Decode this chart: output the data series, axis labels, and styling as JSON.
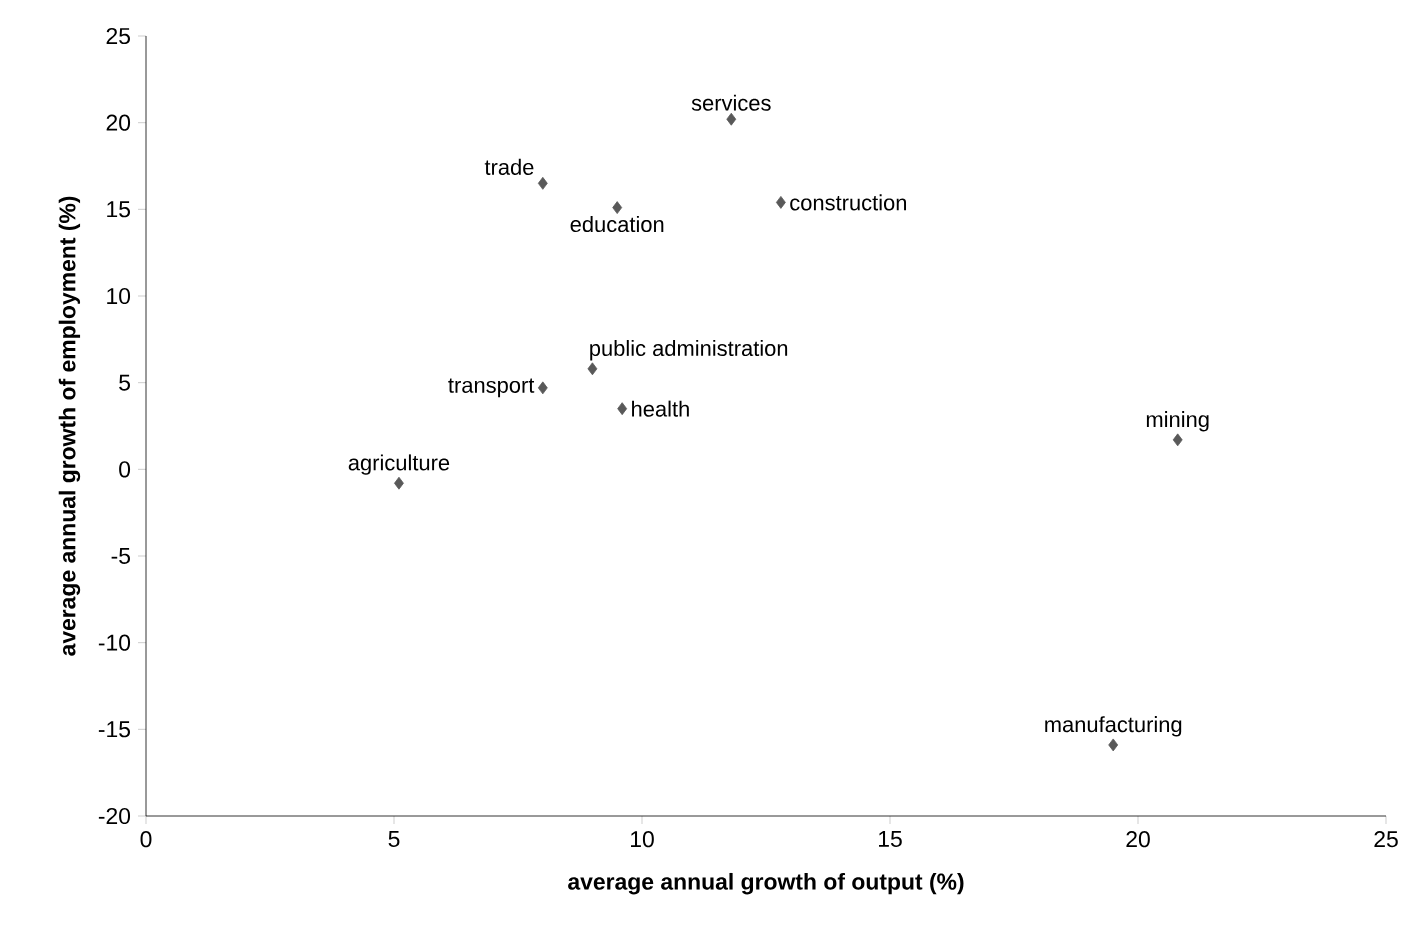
{
  "chart_data": {
    "type": "scatter",
    "xlabel": "average annual growth of output (%)",
    "ylabel": "average annual growth of employment (%)",
    "x": [
      11.8,
      8.0,
      9.5,
      12.8,
      9.0,
      8.0,
      9.6,
      5.1,
      20.8,
      19.5
    ],
    "values": [
      20.2,
      16.5,
      15.1,
      15.4,
      5.8,
      4.7,
      3.5,
      -0.8,
      1.7,
      -15.9
    ],
    "color": "#595959",
    "marker": "diamond",
    "annotations": [
      {
        "text": "services",
        "x": 11.8,
        "y": 20.2
      },
      {
        "text": "trade",
        "x": 8.0,
        "y": 16.5
      },
      {
        "text": "education",
        "x": 9.5,
        "y": 15.1
      },
      {
        "text": "construction",
        "x": 12.8,
        "y": 15.4
      },
      {
        "text": "public administration",
        "x": 9.0,
        "y": 5.8
      },
      {
        "text": "transport",
        "x": 8.0,
        "y": 4.7
      },
      {
        "text": "health",
        "x": 9.6,
        "y": 3.5
      },
      {
        "text": "agriculture",
        "x": 5.1,
        "y": -0.8
      },
      {
        "text": "mining",
        "x": 20.8,
        "y": 1.7
      },
      {
        "text": "manufacturing",
        "x": 19.5,
        "y": -15.9
      }
    ],
    "xlim": [
      0,
      25
    ],
    "ylim": [
      -20,
      25
    ],
    "xticks": [
      0,
      5,
      10,
      15,
      20,
      25
    ],
    "yticks": [
      -20,
      -15,
      -10,
      -5,
      0,
      5,
      10,
      15,
      20,
      25
    ]
  }
}
